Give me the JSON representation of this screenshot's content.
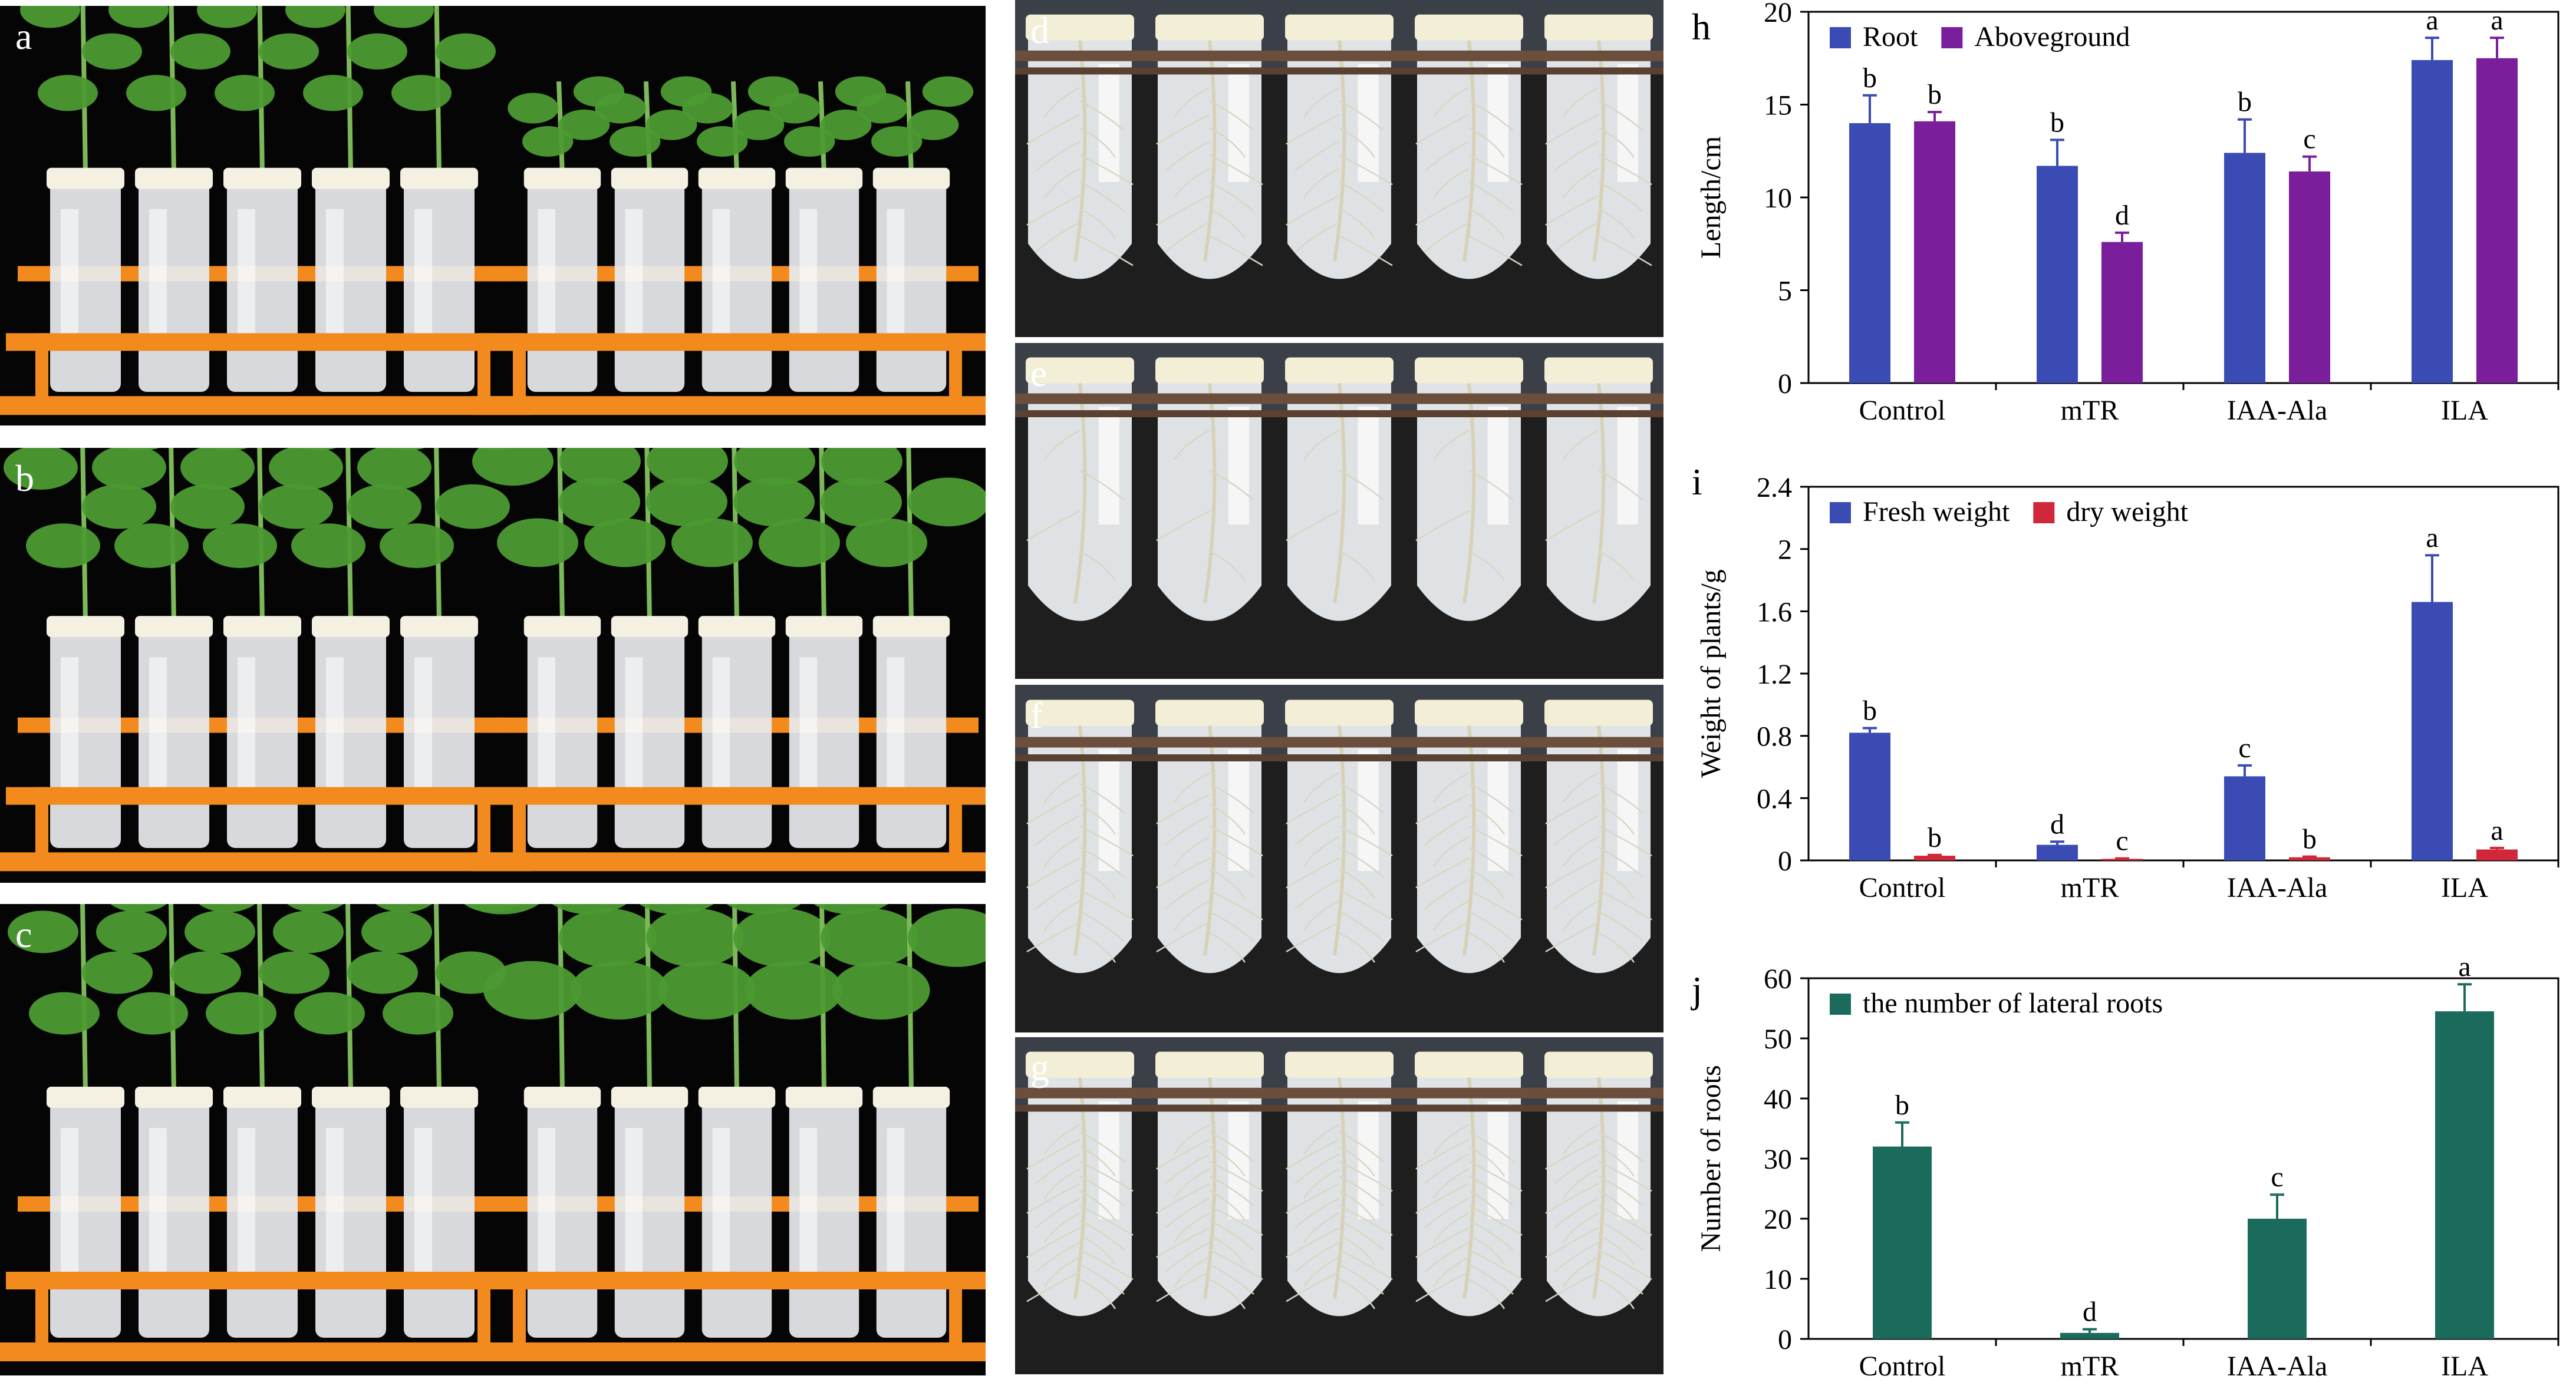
{
  "panels": {
    "a": "a",
    "b": "b",
    "c": "c",
    "d": "d",
    "e": "e",
    "f": "f",
    "g": "g",
    "h": "h",
    "i": "i",
    "j": "j"
  },
  "colors": {
    "root": "#3a4bb3",
    "aboveground": "#7a1e9c",
    "fresh_weight": "#3a4bb3",
    "dry_weight": "#d0283a",
    "lateral_roots": "#1a6b5c",
    "rack": "#f28a1e",
    "leaf": "#4c9a32",
    "tube": "#e9ecef"
  },
  "chart_data": [
    {
      "id": "h",
      "type": "bar",
      "categories": [
        "Control",
        "mTR",
        "IAA-Ala",
        "ILA"
      ],
      "series": [
        {
          "name": "Root",
          "values": [
            14.0,
            11.7,
            12.4,
            17.4
          ],
          "errors": [
            1.5,
            1.4,
            1.8,
            1.2
          ],
          "letters": [
            "b",
            "b",
            "b",
            "a"
          ]
        },
        {
          "name": "Aboveground",
          "values": [
            14.1,
            7.6,
            11.4,
            17.5
          ],
          "errors": [
            0.5,
            0.5,
            0.8,
            1.1
          ],
          "letters": [
            "b",
            "d",
            "c",
            "a"
          ]
        }
      ],
      "ylabel": "Length/cm",
      "ylim": [
        0,
        20
      ],
      "yticks": [
        0,
        5,
        10,
        15,
        20
      ],
      "legend": "top-left"
    },
    {
      "id": "i",
      "type": "bar",
      "categories": [
        "Control",
        "mTR",
        "IAA-Ala",
        "ILA"
      ],
      "series": [
        {
          "name": "Fresh weight",
          "values": [
            0.82,
            0.1,
            0.54,
            1.66
          ],
          "errors": [
            0.03,
            0.02,
            0.07,
            0.3
          ],
          "letters": [
            "b",
            "d",
            "c",
            "a"
          ]
        },
        {
          "name": "dry weight",
          "values": [
            0.03,
            0.01,
            0.02,
            0.07
          ],
          "errors": [
            0.005,
            0.003,
            0.004,
            0.01
          ],
          "letters": [
            "b",
            "c",
            "b",
            "a"
          ]
        }
      ],
      "ylabel": "Weight of plants/g",
      "ylim": [
        0,
        2.4
      ],
      "yticks": [
        0,
        0.4,
        0.8,
        1.2,
        1.6,
        2,
        2.4
      ],
      "legend": "top-left"
    },
    {
      "id": "j",
      "type": "bar",
      "categories": [
        "Control",
        "mTR",
        "IAA-Ala",
        "ILA"
      ],
      "series": [
        {
          "name": "the number of lateral roots",
          "values": [
            32,
            1,
            20,
            54.5
          ],
          "errors": [
            4,
            0.6,
            4,
            4.5
          ],
          "letters": [
            "b",
            "d",
            "c",
            "a"
          ]
        }
      ],
      "ylabel": "Number of roots",
      "ylim": [
        0,
        60
      ],
      "yticks": [
        0,
        10,
        20,
        30,
        40,
        50,
        60
      ],
      "legend": "top-left"
    }
  ]
}
